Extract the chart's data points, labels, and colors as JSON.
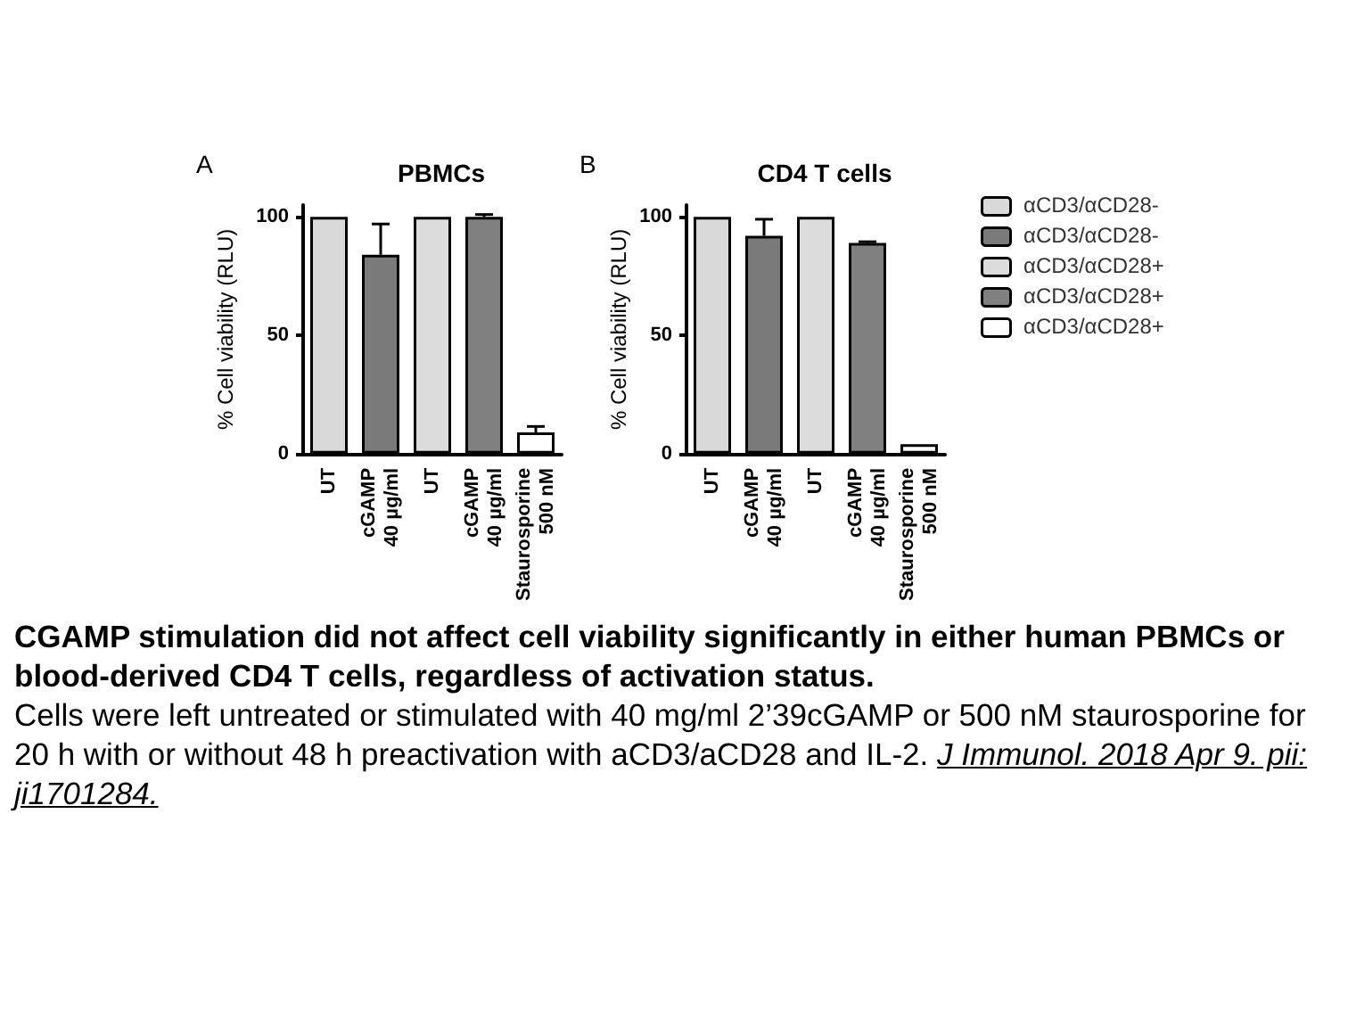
{
  "chart_data": [
    {
      "type": "bar",
      "title": "PBMCs",
      "ylabel": "% Cell viability (RLU)",
      "annotations": [
        "A",
        "CGAMP stimulation did not affect cell viability significantly in either human PBMCs or blood-derived CD4 T cells, regardless of activation status.",
        "Cells were left untreated or stimulated with 40 mg/ml 2’39cGAMP or 500 nM staurosporine for 20 h with or without 48 h preactivation with aCD3/aCD28 and IL-2.",
        "J Immunol. 2018 Apr 9. pii: ji1701284."
      ],
      "categories": [
        "UT",
        "cGAMP\n40 µg/ml",
        "UT",
        "cGAMP\n40 µg/ml",
        "Staurosporine\n500 nM"
      ],
      "series": [
        {
          "color": "#d9d9d9",
          "values": [
            100,
            null,
            null,
            null,
            null
          ]
        },
        {
          "color": "#7a7a7a",
          "values": [
            null,
            84,
            null,
            null,
            null
          ],
          "errors": [
            null,
            [
              84,
              97
            ],
            null,
            null,
            null
          ]
        },
        {
          "color": "#dcdcdc",
          "values": [
            null,
            null,
            100,
            null,
            null
          ]
        },
        {
          "color": "#808080",
          "values": [
            null,
            null,
            null,
            100,
            null
          ],
          "errors": [
            null,
            null,
            null,
            [
              100,
              101
            ],
            null
          ]
        },
        {
          "color": "#ffffff",
          "values": [
            null,
            null,
            null,
            null,
            9
          ],
          "errors": [
            null,
            null,
            null,
            null,
            [
              9,
              11.5
            ]
          ]
        }
      ],
      "ylim": [
        0,
        105
      ],
      "yticks": [
        0,
        50,
        100
      ],
      "legend": false
    },
    {
      "type": "bar",
      "title": "CD4 T cells",
      "ylabel": "% Cell viability (RLU)",
      "annotations": [
        "B"
      ],
      "categories": [
        "UT",
        "cGAMP\n40 µg/ml",
        "UT",
        "cGAMP\n40 µg/ml",
        "Staurosporine\n500 nM"
      ],
      "series": [
        {
          "name": "αCD3/αCD28-",
          "color": "#d9d9d9",
          "values": [
            100,
            null,
            null,
            null,
            null
          ]
        },
        {
          "name": "αCD3/αCD28-",
          "color": "#7a7a7a",
          "values": [
            null,
            92,
            null,
            null,
            null
          ],
          "errors": [
            null,
            [
              92,
              99
            ],
            null,
            null,
            null
          ]
        },
        {
          "name": "αCD3/αCD28+",
          "color": "#dcdcdc",
          "values": [
            null,
            null,
            100,
            null,
            null
          ]
        },
        {
          "name": "αCD3/αCD28+",
          "color": "#808080",
          "values": [
            null,
            null,
            null,
            89,
            null
          ],
          "errors": [
            null,
            null,
            null,
            [
              89,
              89.5
            ],
            null
          ]
        },
        {
          "name": "αCD3/αCD28+",
          "color": "#ffffff",
          "values": [
            null,
            null,
            null,
            null,
            4
          ]
        }
      ],
      "ylim": [
        0,
        105
      ],
      "yticks": [
        0,
        50,
        100
      ],
      "legend": "right"
    }
  ]
}
